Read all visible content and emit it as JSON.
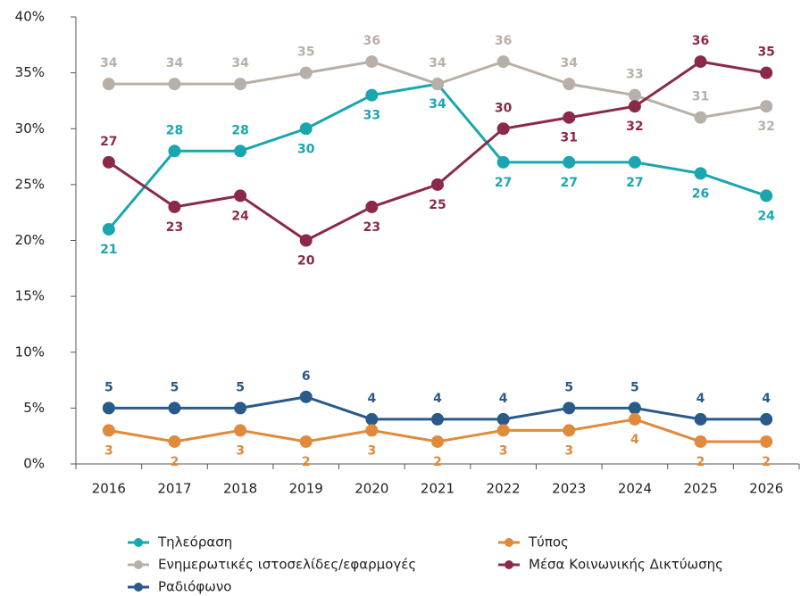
{
  "chart_data": {
    "type": "line",
    "categories": [
      "2016",
      "2017",
      "2018",
      "2019",
      "2020",
      "2021",
      "2022",
      "2023",
      "2024",
      "2025",
      "2026"
    ],
    "series": [
      {
        "name": "Τηλεόραση",
        "color": "#1aa6b0",
        "values": [
          21,
          28,
          28,
          30,
          33,
          34,
          27,
          27,
          27,
          26,
          24
        ]
      },
      {
        "name": "Ενημερωτικές ιστοσελίδες/εφαρμογές",
        "color": "#b8b0a8",
        "values": [
          34,
          34,
          34,
          35,
          36,
          34,
          36,
          34,
          33,
          31,
          32
        ]
      },
      {
        "name": "Ραδιόφωνο",
        "color": "#2a5a8a",
        "values": [
          5,
          5,
          5,
          6,
          4,
          4,
          4,
          5,
          5,
          4,
          4
        ]
      },
      {
        "name": "Τύπος",
        "color": "#e08a3c",
        "values": [
          3,
          2,
          3,
          2,
          3,
          2,
          3,
          3,
          4,
          2,
          2
        ]
      },
      {
        "name": "Μέσα Κοινωνικής Δικτύωσης",
        "color": "#8b2a48",
        "values": [
          27,
          23,
          24,
          20,
          23,
          25,
          30,
          31,
          32,
          36,
          35
        ]
      }
    ],
    "ylim": [
      0,
      40
    ],
    "yticks": [
      {
        "value": 0,
        "label": "0%"
      },
      {
        "value": 5,
        "label": "5%"
      },
      {
        "value": 10,
        "label": "10%"
      },
      {
        "value": 15,
        "label": "15%"
      },
      {
        "value": 20,
        "label": "20%"
      },
      {
        "value": 25,
        "label": "25%"
      },
      {
        "value": 30,
        "label": "30%"
      },
      {
        "value": 35,
        "label": "35%"
      },
      {
        "value": 40,
        "label": "40%"
      }
    ],
    "grid": false
  }
}
